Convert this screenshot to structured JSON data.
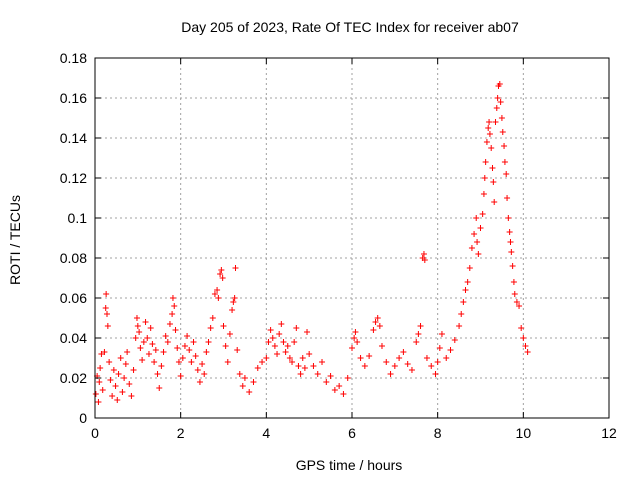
{
  "chart_data": {
    "type": "scatter",
    "title": "Day 205 of 2023, Rate Of TEC Index for receiver ab07",
    "xlabel": "GPS time / hours",
    "ylabel": "ROTI / TECUs",
    "xlim": [
      0,
      12
    ],
    "ylim": [
      0,
      0.18
    ],
    "xticks": [
      0,
      2,
      4,
      6,
      8,
      10,
      12
    ],
    "yticks": [
      0,
      0.02,
      0.04,
      0.06,
      0.08,
      0.1,
      0.12,
      0.14,
      0.16,
      0.18
    ],
    "xtick_labels": [
      "0",
      "2",
      "4",
      "6",
      "8",
      "10",
      "12"
    ],
    "ytick_labels": [
      "0",
      "0.02",
      "0.04",
      "0.06",
      "0.08",
      "0.1",
      "0.12",
      "0.14",
      "0.16",
      "0.18"
    ],
    "grid": true,
    "marker": "+",
    "color": "#ff0000",
    "series": [
      {
        "name": "ROTI",
        "points": [
          [
            0.02,
            0.012
          ],
          [
            0.05,
            0.021
          ],
          [
            0.08,
            0.008
          ],
          [
            0.1,
            0.018
          ],
          [
            0.12,
            0.025
          ],
          [
            0.15,
            0.032
          ],
          [
            0.18,
            0.014
          ],
          [
            0.22,
            0.033
          ],
          [
            0.25,
            0.055
          ],
          [
            0.26,
            0.062
          ],
          [
            0.28,
            0.052
          ],
          [
            0.3,
            0.046
          ],
          [
            0.33,
            0.028
          ],
          [
            0.36,
            0.019
          ],
          [
            0.4,
            0.011
          ],
          [
            0.44,
            0.024
          ],
          [
            0.48,
            0.016
          ],
          [
            0.52,
            0.009
          ],
          [
            0.55,
            0.022
          ],
          [
            0.6,
            0.03
          ],
          [
            0.64,
            0.013
          ],
          [
            0.68,
            0.02
          ],
          [
            0.72,
            0.027
          ],
          [
            0.75,
            0.033
          ],
          [
            0.8,
            0.017
          ],
          [
            0.85,
            0.011
          ],
          [
            0.9,
            0.024
          ],
          [
            0.95,
            0.04
          ],
          [
            0.98,
            0.05
          ],
          [
            1.0,
            0.046
          ],
          [
            1.03,
            0.043
          ],
          [
            1.06,
            0.035
          ],
          [
            1.1,
            0.029
          ],
          [
            1.14,
            0.038
          ],
          [
            1.18,
            0.048
          ],
          [
            1.22,
            0.04
          ],
          [
            1.26,
            0.032
          ],
          [
            1.3,
            0.045
          ],
          [
            1.34,
            0.037
          ],
          [
            1.38,
            0.028
          ],
          [
            1.42,
            0.034
          ],
          [
            1.46,
            0.022
          ],
          [
            1.5,
            0.015
          ],
          [
            1.55,
            0.026
          ],
          [
            1.6,
            0.033
          ],
          [
            1.65,
            0.041
          ],
          [
            1.7,
            0.038
          ],
          [
            1.75,
            0.047
          ],
          [
            1.8,
            0.052
          ],
          [
            1.82,
            0.06
          ],
          [
            1.85,
            0.056
          ],
          [
            1.88,
            0.044
          ],
          [
            1.92,
            0.035
          ],
          [
            1.96,
            0.028
          ],
          [
            2.0,
            0.021
          ],
          [
            2.05,
            0.03
          ],
          [
            2.1,
            0.036
          ],
          [
            2.15,
            0.041
          ],
          [
            2.2,
            0.034
          ],
          [
            2.25,
            0.028
          ],
          [
            2.3,
            0.038
          ],
          [
            2.35,
            0.031
          ],
          [
            2.4,
            0.024
          ],
          [
            2.45,
            0.018
          ],
          [
            2.5,
            0.027
          ],
          [
            2.55,
            0.022
          ],
          [
            2.6,
            0.033
          ],
          [
            2.65,
            0.038
          ],
          [
            2.7,
            0.045
          ],
          [
            2.75,
            0.05
          ],
          [
            2.8,
            0.062
          ],
          [
            2.85,
            0.064
          ],
          [
            2.88,
            0.06
          ],
          [
            2.92,
            0.072
          ],
          [
            2.95,
            0.074
          ],
          [
            2.98,
            0.07
          ],
          [
            3.0,
            0.046
          ],
          [
            3.05,
            0.036
          ],
          [
            3.1,
            0.028
          ],
          [
            3.15,
            0.042
          ],
          [
            3.2,
            0.054
          ],
          [
            3.23,
            0.058
          ],
          [
            3.26,
            0.06
          ],
          [
            3.28,
            0.075
          ],
          [
            3.32,
            0.034
          ],
          [
            3.38,
            0.022
          ],
          [
            3.45,
            0.016
          ],
          [
            3.5,
            0.02
          ],
          [
            3.6,
            0.013
          ],
          [
            3.7,
            0.018
          ],
          [
            3.8,
            0.025
          ],
          [
            3.9,
            0.028
          ],
          [
            4.0,
            0.03
          ],
          [
            4.05,
            0.038
          ],
          [
            4.1,
            0.044
          ],
          [
            4.15,
            0.04
          ],
          [
            4.2,
            0.036
          ],
          [
            4.25,
            0.032
          ],
          [
            4.3,
            0.042
          ],
          [
            4.35,
            0.047
          ],
          [
            4.4,
            0.038
          ],
          [
            4.45,
            0.033
          ],
          [
            4.5,
            0.036
          ],
          [
            4.55,
            0.03
          ],
          [
            4.6,
            0.028
          ],
          [
            4.65,
            0.038
          ],
          [
            4.7,
            0.045
          ],
          [
            4.75,
            0.026
          ],
          [
            4.8,
            0.022
          ],
          [
            4.85,
            0.03
          ],
          [
            4.9,
            0.025
          ],
          [
            4.95,
            0.043
          ],
          [
            5.0,
            0.032
          ],
          [
            5.1,
            0.026
          ],
          [
            5.2,
            0.022
          ],
          [
            5.3,
            0.028
          ],
          [
            5.4,
            0.018
          ],
          [
            5.5,
            0.021
          ],
          [
            5.6,
            0.014
          ],
          [
            5.7,
            0.016
          ],
          [
            5.8,
            0.012
          ],
          [
            5.9,
            0.02
          ],
          [
            6.0,
            0.035
          ],
          [
            6.05,
            0.04
          ],
          [
            6.08,
            0.043
          ],
          [
            6.12,
            0.038
          ],
          [
            6.2,
            0.03
          ],
          [
            6.3,
            0.026
          ],
          [
            6.4,
            0.031
          ],
          [
            6.5,
            0.044
          ],
          [
            6.55,
            0.048
          ],
          [
            6.6,
            0.05
          ],
          [
            6.65,
            0.046
          ],
          [
            6.7,
            0.036
          ],
          [
            6.8,
            0.028
          ],
          [
            6.9,
            0.022
          ],
          [
            7.0,
            0.026
          ],
          [
            7.1,
            0.03
          ],
          [
            7.2,
            0.033
          ],
          [
            7.3,
            0.027
          ],
          [
            7.4,
            0.024
          ],
          [
            7.5,
            0.038
          ],
          [
            7.55,
            0.042
          ],
          [
            7.6,
            0.046
          ],
          [
            7.65,
            0.08
          ],
          [
            7.68,
            0.082
          ],
          [
            7.7,
            0.079
          ],
          [
            7.75,
            0.03
          ],
          [
            7.85,
            0.026
          ],
          [
            7.95,
            0.022
          ],
          [
            8.0,
            0.028
          ],
          [
            8.05,
            0.035
          ],
          [
            8.1,
            0.042
          ],
          [
            8.2,
            0.03
          ],
          [
            8.3,
            0.034
          ],
          [
            8.4,
            0.039
          ],
          [
            8.5,
            0.046
          ],
          [
            8.55,
            0.052
          ],
          [
            8.6,
            0.058
          ],
          [
            8.65,
            0.064
          ],
          [
            8.7,
            0.068
          ],
          [
            8.75,
            0.075
          ],
          [
            8.8,
            0.085
          ],
          [
            8.85,
            0.092
          ],
          [
            8.9,
            0.1
          ],
          [
            8.92,
            0.088
          ],
          [
            8.95,
            0.082
          ],
          [
            9.0,
            0.095
          ],
          [
            9.05,
            0.102
          ],
          [
            9.08,
            0.112
          ],
          [
            9.1,
            0.12
          ],
          [
            9.12,
            0.128
          ],
          [
            9.15,
            0.138
          ],
          [
            9.18,
            0.145
          ],
          [
            9.2,
            0.148
          ],
          [
            9.22,
            0.142
          ],
          [
            9.25,
            0.135
          ],
          [
            9.28,
            0.125
          ],
          [
            9.3,
            0.118
          ],
          [
            9.32,
            0.108
          ],
          [
            9.35,
            0.148
          ],
          [
            9.38,
            0.155
          ],
          [
            9.4,
            0.16
          ],
          [
            9.42,
            0.166
          ],
          [
            9.45,
            0.167
          ],
          [
            9.47,
            0.158
          ],
          [
            9.5,
            0.15
          ],
          [
            9.52,
            0.143
          ],
          [
            9.55,
            0.136
          ],
          [
            9.57,
            0.128
          ],
          [
            9.6,
            0.122
          ],
          [
            9.62,
            0.11
          ],
          [
            9.65,
            0.1
          ],
          [
            9.68,
            0.093
          ],
          [
            9.7,
            0.088
          ],
          [
            9.72,
            0.083
          ],
          [
            9.75,
            0.076
          ],
          [
            9.78,
            0.068
          ],
          [
            9.8,
            0.062
          ],
          [
            9.85,
            0.058
          ],
          [
            9.9,
            0.056
          ],
          [
            9.95,
            0.045
          ],
          [
            10.0,
            0.04
          ],
          [
            10.05,
            0.036
          ],
          [
            10.1,
            0.033
          ]
        ]
      }
    ]
  }
}
